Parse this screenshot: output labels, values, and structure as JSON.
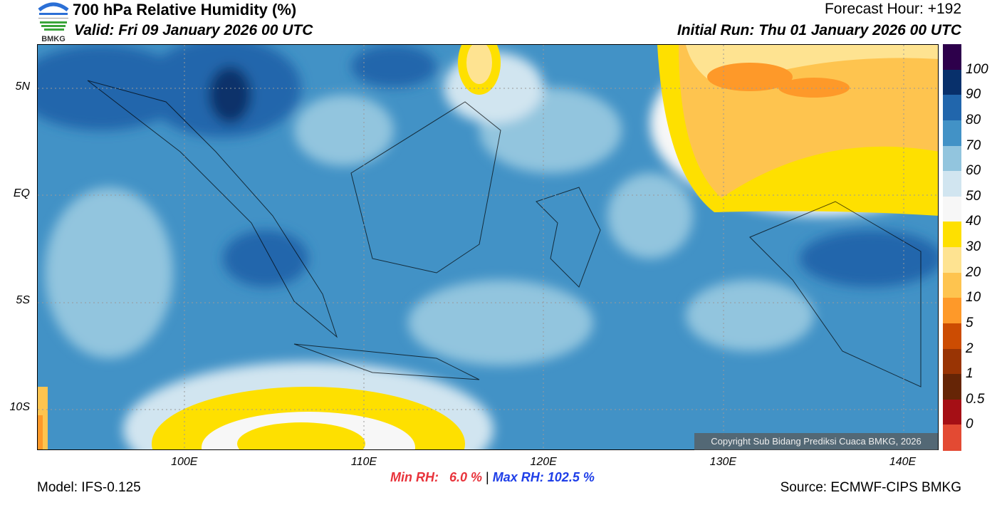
{
  "header": {
    "title": "700 hPa Relative Humidity (%)",
    "valid": "Valid: Fri 09 January 2026 00 UTC",
    "forecast_hour": "Forecast Hour: +192",
    "initial_run": "Initial Run: Thu 01 January 2026 00 UTC",
    "logo_text": "BMKG"
  },
  "axes": {
    "lon": [
      {
        "label": "100E",
        "deg": 100
      },
      {
        "label": "110E",
        "deg": 110
      },
      {
        "label": "120E",
        "deg": 120
      },
      {
        "label": "130E",
        "deg": 130
      },
      {
        "label": "140E",
        "deg": 140
      }
    ],
    "lat": [
      {
        "label": "5N",
        "deg": 5
      },
      {
        "label": "EQ",
        "deg": 0
      },
      {
        "label": "5S",
        "deg": -5
      },
      {
        "label": "10S",
        "deg": -10
      }
    ],
    "lon_range": [
      91.8,
      142
    ],
    "lat_range": [
      -12,
      7
    ]
  },
  "colorbar": {
    "labels": [
      "100",
      "90",
      "80",
      "70",
      "60",
      "50",
      "40",
      "30",
      "20",
      "10",
      "5",
      "2",
      "1",
      "0.5",
      "0"
    ],
    "colors": [
      "#2d004b",
      "#08306b",
      "#2166ac",
      "#4292c6",
      "#92c5de",
      "#d1e5f0",
      "#f7f7f7",
      "#fee000",
      "#fee391",
      "#fec44f",
      "#fe9929",
      "#cc4c02",
      "#993404",
      "#662506",
      "#a50f15",
      "#e34a33"
    ]
  },
  "footer": {
    "model": "Model: IFS-0.125",
    "source": "Source: ECMWF-CIPS BMKG",
    "min_label": "Min RH:",
    "min_value": "6.0 %",
    "separator": "|",
    "max_label": "Max RH:",
    "max_value": "102.5 %",
    "copyright": "Copyright Sub Bidang Prediksi Cuaca BMKG, 2026"
  },
  "colors": {
    "min": "#e8333b",
    "max": "#1f3fe8"
  }
}
